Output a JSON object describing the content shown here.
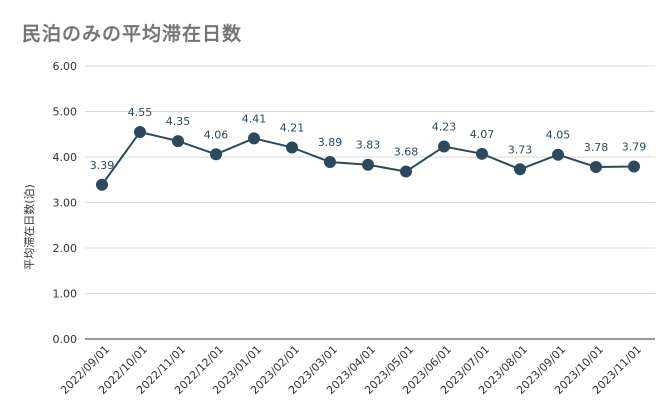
{
  "chart_data": {
    "type": "line",
    "title": "民泊のみの平均滞在日数",
    "xlabel": "",
    "ylabel": "平均滞在日数(泊)",
    "ylim": [
      0,
      6
    ],
    "yticks": [
      "0.00",
      "1.00",
      "2.00",
      "3.00",
      "4.00",
      "5.00",
      "6.00"
    ],
    "categories": [
      "2022/09/01",
      "2022/10/01",
      "2022/11/01",
      "2022/12/01",
      "2023/01/01",
      "2023/02/01",
      "2023/03/01",
      "2023/04/01",
      "2023/05/01",
      "2023/06/01",
      "2023/07/01",
      "2023/08/01",
      "2023/09/01",
      "2023/10/01",
      "2023/11/01"
    ],
    "series": [
      {
        "values": [
          3.39,
          4.55,
          4.35,
          4.06,
          4.41,
          4.21,
          3.89,
          3.83,
          3.68,
          4.23,
          4.07,
          3.73,
          4.05,
          3.78,
          3.79
        ],
        "labels": [
          "3.39",
          "4.55",
          "4.35",
          "4.06",
          "4.41",
          "4.21",
          "3.89",
          "3.83",
          "3.68",
          "4.23",
          "4.07",
          "3.73",
          "4.05",
          "3.78",
          "3.79"
        ],
        "color": "#2c4a5e"
      }
    ],
    "grid": true,
    "legend": "none",
    "colors": {
      "line": "#2c4a5e",
      "grid": "#d9d9d9",
      "text": "#333333",
      "label": "#2c4a5e"
    }
  }
}
